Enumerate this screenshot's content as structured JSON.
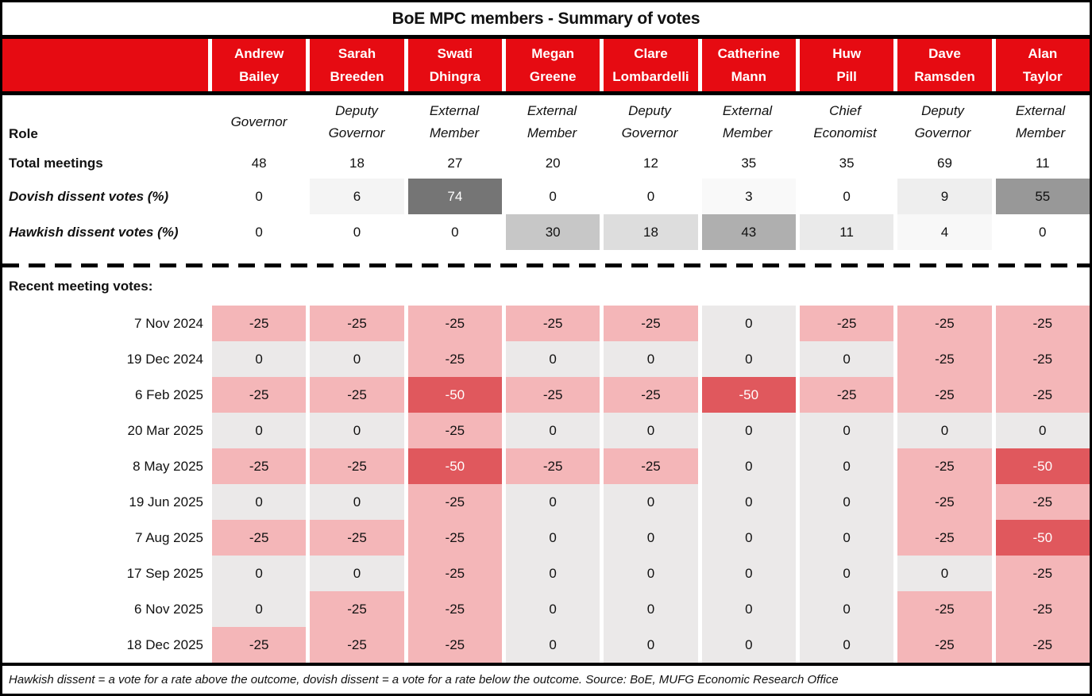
{
  "title": "BoE MPC members - Summary of votes",
  "colors": {
    "header_red": "#e60b12",
    "vote_cut25_bg": "#f4b6b8",
    "vote_cut50_bg": "#e0585d",
    "vote_hold_bg": "#ebe9e9",
    "dissent_max_bg": "#757575"
  },
  "chart_data": {
    "type": "table",
    "row_labels": {
      "role": "Role",
      "meetings": "Total meetings",
      "dovish": "Dovish dissent votes (%)",
      "hawkish": "Hawkish dissent votes (%)",
      "recent": "Recent meeting votes:"
    },
    "members": [
      {
        "first": "Andrew",
        "last": "Bailey",
        "role": "Governor",
        "total_meetings": 48,
        "dovish_pct": 0,
        "hawkish_pct": 0
      },
      {
        "first": "Sarah",
        "last": "Breeden",
        "role": "Deputy Governor",
        "total_meetings": 18,
        "dovish_pct": 6,
        "hawkish_pct": 0
      },
      {
        "first": "Swati",
        "last": "Dhingra",
        "role": "External Member",
        "total_meetings": 27,
        "dovish_pct": 74,
        "hawkish_pct": 0
      },
      {
        "first": "Megan",
        "last": "Greene",
        "role": "External Member",
        "total_meetings": 20,
        "dovish_pct": 0,
        "hawkish_pct": 30
      },
      {
        "first": "Clare",
        "last": "Lombardelli",
        "role": "Deputy Governor",
        "total_meetings": 12,
        "dovish_pct": 0,
        "hawkish_pct": 18
      },
      {
        "first": "Catherine",
        "last": "Mann",
        "role": "External Member",
        "total_meetings": 35,
        "dovish_pct": 3,
        "hawkish_pct": 43
      },
      {
        "first": "Huw",
        "last": "Pill",
        "role": "Chief Economist",
        "total_meetings": 35,
        "dovish_pct": 0,
        "hawkish_pct": 11
      },
      {
        "first": "Dave",
        "last": "Ramsden",
        "role": "Deputy Governor",
        "total_meetings": 69,
        "dovish_pct": 9,
        "hawkish_pct": 4
      },
      {
        "first": "Alan",
        "last": "Taylor",
        "role": "External Member",
        "total_meetings": 11,
        "dovish_pct": 55,
        "hawkish_pct": 0
      }
    ],
    "meetings": [
      {
        "date": "7 Nov 2024",
        "votes": [
          -25,
          -25,
          -25,
          -25,
          -25,
          0,
          -25,
          -25,
          -25
        ]
      },
      {
        "date": "19 Dec 2024",
        "votes": [
          0,
          0,
          -25,
          0,
          0,
          0,
          0,
          -25,
          -25
        ]
      },
      {
        "date": "6 Feb 2025",
        "votes": [
          -25,
          -25,
          -50,
          -25,
          -25,
          -50,
          -25,
          -25,
          -25
        ]
      },
      {
        "date": "20 Mar 2025",
        "votes": [
          0,
          0,
          -25,
          0,
          0,
          0,
          0,
          0,
          0
        ]
      },
      {
        "date": "8 May 2025",
        "votes": [
          -25,
          -25,
          -50,
          -25,
          -25,
          0,
          0,
          -25,
          -50
        ]
      },
      {
        "date": "19 Jun 2025",
        "votes": [
          0,
          0,
          -25,
          0,
          0,
          0,
          0,
          -25,
          -25
        ]
      },
      {
        "date": "7 Aug 2025",
        "votes": [
          -25,
          -25,
          -25,
          0,
          0,
          0,
          0,
          -25,
          -50
        ]
      },
      {
        "date": "17 Sep 2025",
        "votes": [
          0,
          0,
          -25,
          0,
          0,
          0,
          0,
          0,
          -25
        ]
      },
      {
        "date": "6 Nov 2025",
        "votes": [
          0,
          -25,
          -25,
          0,
          0,
          0,
          0,
          -25,
          -25
        ]
      },
      {
        "date": "18 Dec 2025",
        "votes": [
          -25,
          -25,
          -25,
          0,
          0,
          0,
          0,
          -25,
          -25
        ]
      }
    ]
  },
  "footer": "Hawkish dissent = a vote for a rate above the outcome, dovish dissent = a vote for a rate below the outcome. Source: BoE, MUFG Economic Research Office"
}
